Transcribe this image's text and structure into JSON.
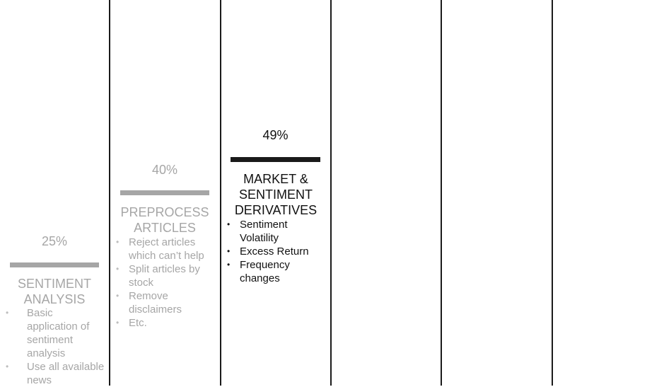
{
  "colors": {
    "muted": "#a6a6a6",
    "active": "#111111",
    "divider": "#1a1a1a"
  },
  "steps": [
    {
      "percent": "25%",
      "title": "SENTIMENT ANALYSIS",
      "bullets": [
        "Basic application of sentiment analysis",
        "Use all available news"
      ]
    },
    {
      "percent": "40%",
      "title": "PREPROCESS ARTICLES",
      "bullets": [
        "Reject articles which can’t help",
        "Split articles by stock",
        "Remove disclaimers",
        "Etc."
      ]
    },
    {
      "percent": "49%",
      "title": "MARKET & SENTIMENT DERIVATIVES",
      "bullets": [
        "Sentiment Volatility",
        "Excess Return",
        "Frequency changes"
      ]
    }
  ]
}
